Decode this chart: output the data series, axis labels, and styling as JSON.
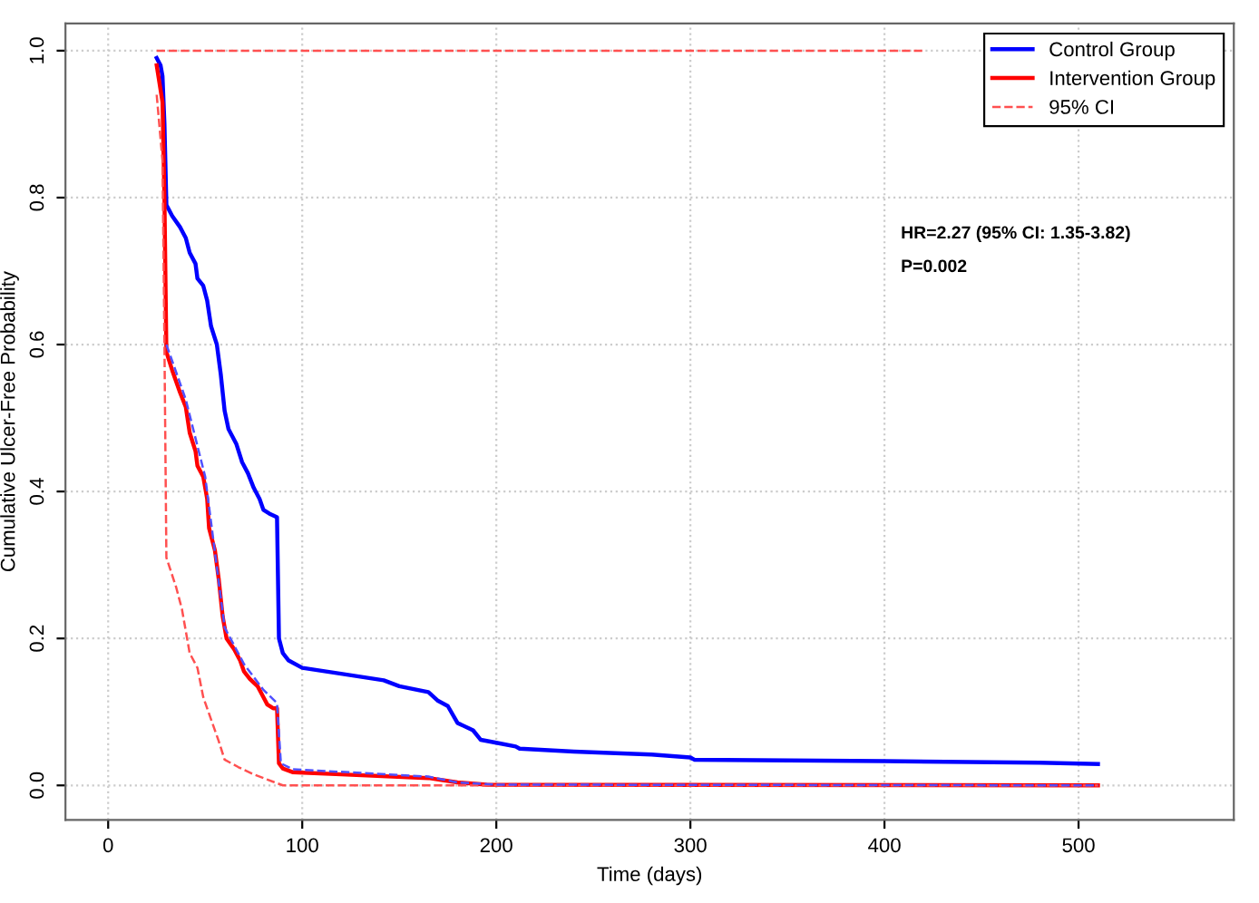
{
  "chart_data": {
    "type": "line",
    "xlabel": "Time (days)",
    "ylabel": "Cumulative Ulcer-Free Probability",
    "annotations": [
      "HR=2.27 (95% CI: 1.35-3.82)",
      "P=0.002"
    ],
    "xlim": [
      -22,
      580
    ],
    "ylim": [
      -0.047,
      1.037
    ],
    "xticks": [
      0,
      100,
      200,
      300,
      400,
      500
    ],
    "yticks": [
      {
        "value": 0,
        "label": "0.0"
      },
      0.2,
      0.4,
      0.6,
      0.8,
      {
        "value": 1,
        "label": "1.0"
      }
    ],
    "grid": true,
    "legend": "top right",
    "series": [
      {
        "name": "Control Group",
        "color": "#0000ff",
        "line_style": "solid",
        "x": [
          25,
          27,
          28,
          29,
          30,
          33,
          37,
          40,
          42,
          45,
          46,
          49,
          51,
          53,
          56,
          58,
          60,
          62,
          66,
          69,
          72,
          75,
          78,
          80,
          83,
          87,
          88,
          90,
          93,
          100,
          120,
          142,
          150,
          165,
          170,
          175,
          180,
          188,
          192,
          200,
          210,
          212,
          240,
          280,
          300,
          302,
          400,
          480,
          510
        ],
        "values": [
          0.99,
          0.98,
          0.965,
          0.9,
          0.79,
          0.775,
          0.76,
          0.745,
          0.725,
          0.71,
          0.69,
          0.68,
          0.66,
          0.625,
          0.6,
          0.56,
          0.51,
          0.485,
          0.465,
          0.44,
          0.425,
          0.405,
          0.39,
          0.375,
          0.37,
          0.365,
          0.2,
          0.18,
          0.17,
          0.16,
          0.152,
          0.143,
          0.135,
          0.127,
          0.115,
          0.108,
          0.085,
          0.075,
          0.062,
          0.058,
          0.053,
          0.05,
          0.046,
          0.042,
          0.038,
          0.035,
          0.033,
          0.031,
          0.029
        ]
      },
      {
        "name": "Intervention Group",
        "color": "#ff0000",
        "line_style": "solid",
        "x": [
          25,
          28,
          29,
          30,
          33,
          37,
          40,
          42,
          45,
          46,
          49,
          51,
          52,
          55,
          57,
          59,
          61,
          65,
          68,
          70,
          73,
          77,
          80,
          82,
          85,
          87,
          88,
          90,
          95,
          120,
          165,
          180,
          195,
          510
        ],
        "values": [
          0.98,
          0.93,
          0.8,
          0.59,
          0.565,
          0.535,
          0.515,
          0.48,
          0.455,
          0.435,
          0.42,
          0.39,
          0.35,
          0.32,
          0.28,
          0.23,
          0.2,
          0.185,
          0.17,
          0.155,
          0.145,
          0.135,
          0.12,
          0.11,
          0.105,
          0.105,
          0.03,
          0.023,
          0.018,
          0.015,
          0.01,
          0.004,
          0.001,
          0.0
        ]
      },
      {
        "name": "95% CI",
        "color": "#ff5050",
        "line_style": "dashed",
        "x": [
          25,
          28,
          29,
          30,
          35,
          38,
          42,
          46,
          49,
          53,
          57,
          60,
          67,
          75,
          85,
          90,
          510
        ],
        "values": [
          0.94,
          0.85,
          0.6,
          0.31,
          0.27,
          0.24,
          0.18,
          0.16,
          0.12,
          0.09,
          0.06,
          0.035,
          0.025,
          0.015,
          0.005,
          0.0,
          0.0
        ]
      },
      {
        "color": "#ff5050",
        "line_style": "dashed",
        "x": [
          25,
          420
        ],
        "values": [
          1.0,
          1.0
        ]
      },
      {
        "color": "#5050ff",
        "line_style": "dashed",
        "x": [
          30,
          40,
          50,
          60,
          70,
          80,
          87,
          89,
          95,
          165,
          180,
          200,
          510
        ],
        "values": [
          0.6,
          0.525,
          0.42,
          0.215,
          0.165,
          0.13,
          0.112,
          0.03,
          0.022,
          0.012,
          0.004,
          0.001,
          0.0
        ]
      }
    ]
  }
}
